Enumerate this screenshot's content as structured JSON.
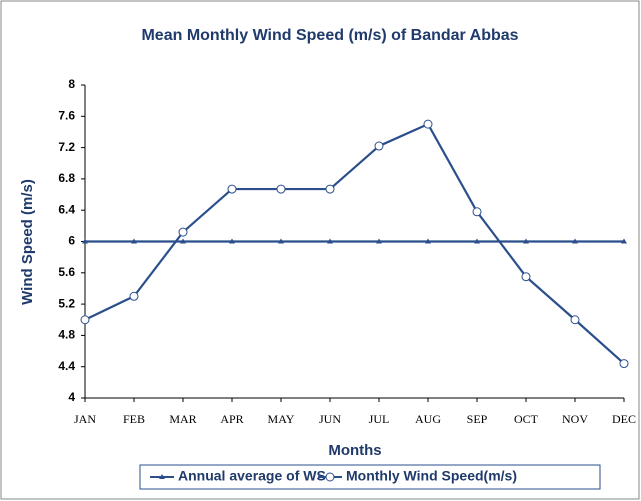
{
  "chart_data": {
    "type": "line",
    "title": "Mean Monthly Wind Speed (m/s) of Bandar Abbas",
    "x_label": "Months",
    "y_label": "Wind Speed (m/s)",
    "categories": [
      "JAN",
      "FEB",
      "MAR",
      "APR",
      "MAY",
      "JUN",
      "JUL",
      "AUG",
      "SEP",
      "OCT",
      "NOV",
      "DEC"
    ],
    "series": [
      {
        "name": "Annual average of WS",
        "color": "#2b4f8c",
        "marker": "triangle",
        "values": [
          6,
          6,
          6,
          6,
          6,
          6,
          6,
          6,
          6,
          6,
          6,
          6
        ]
      },
      {
        "name": "Monthly Wind Speed(m/s)",
        "color": "#2b4f8c",
        "marker": "circle",
        "values": [
          5.0,
          5.3,
          6.12,
          6.67,
          6.67,
          6.67,
          7.22,
          7.5,
          6.38,
          5.55,
          5.0,
          4.44
        ]
      }
    ],
    "ylim": [
      4,
      8
    ],
    "yticks": [
      4,
      4.4,
      4.8,
      5.2,
      5.6,
      6,
      6.4,
      6.8,
      7.2,
      7.6,
      8
    ]
  }
}
